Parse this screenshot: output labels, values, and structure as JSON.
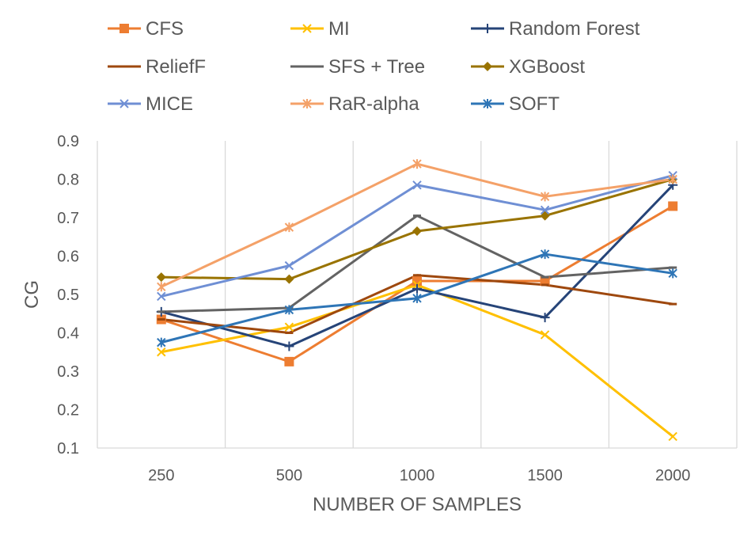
{
  "chart_data": {
    "type": "line",
    "title": "",
    "xlabel": "NUMBER OF SAMPLES",
    "ylabel": "CG",
    "categories": [
      "250",
      "500",
      "1000",
      "1500",
      "2000"
    ],
    "ylim": [
      0.1,
      0.9
    ],
    "y_ticks": [
      "0.1",
      "0.2",
      "0.3",
      "0.4",
      "0.5",
      "0.6",
      "0.7",
      "0.8",
      "0.9"
    ],
    "grid": "vertical",
    "legend_position": "top",
    "series": [
      {
        "name": "CFS",
        "color": "#ed7d31",
        "marker": "square",
        "values": [
          0.435,
          0.325,
          0.535,
          0.535,
          0.73
        ]
      },
      {
        "name": "MI",
        "color": "#ffc000",
        "marker": "x",
        "values": [
          0.35,
          0.415,
          0.525,
          0.395,
          0.13
        ]
      },
      {
        "name": "Random Forest",
        "color": "#264478",
        "marker": "plus",
        "values": [
          0.455,
          0.365,
          0.515,
          0.44,
          0.785
        ]
      },
      {
        "name": "ReliefF",
        "color": "#9e480e",
        "marker": "dash",
        "values": [
          0.435,
          0.4,
          0.55,
          0.525,
          0.475
        ]
      },
      {
        "name": "SFS + Tree",
        "color": "#636363",
        "marker": "dash",
        "values": [
          0.455,
          0.465,
          0.705,
          0.545,
          0.57
        ]
      },
      {
        "name": "XGBoost",
        "color": "#997300",
        "marker": "diamond",
        "values": [
          0.545,
          0.54,
          0.665,
          0.705,
          0.8
        ]
      },
      {
        "name": "MICE",
        "color": "#6f8fd4",
        "marker": "x",
        "values": [
          0.495,
          0.575,
          0.785,
          0.72,
          0.81
        ]
      },
      {
        "name": "RaR-alpha",
        "color": "#f4a168",
        "marker": "star",
        "values": [
          0.52,
          0.675,
          0.84,
          0.755,
          0.8
        ]
      },
      {
        "name": "SOFT",
        "color": "#2e75b6",
        "marker": "star",
        "values": [
          0.375,
          0.46,
          0.49,
          0.605,
          0.555
        ]
      }
    ]
  }
}
